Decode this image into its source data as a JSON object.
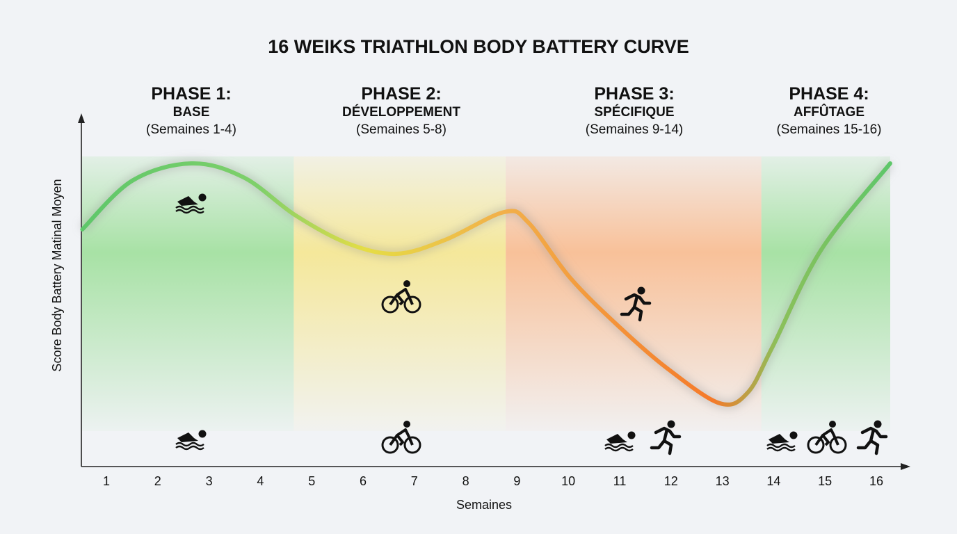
{
  "chart_data": {
    "type": "line",
    "title": "16 WEIKS TRIATHLON BODY BATTERY CURVE",
    "xlabel": "Semaines",
    "ylabel": "Score Body Battery Matinal Moyen",
    "x_ticks": [
      "1",
      "2",
      "3",
      "4",
      "5",
      "6",
      "7",
      "8",
      "9",
      "10",
      "11",
      "12",
      "13",
      "14",
      "15",
      "16"
    ],
    "xlim": [
      0.5,
      16.3
    ],
    "ylim": [
      0,
      100
    ],
    "grid": false,
    "series": [
      {
        "x": [
          0.53,
          1.5,
          2.65,
          3.67,
          4.69,
          5.7,
          6.65,
          7.6,
          8.75,
          9.22,
          10.04,
          10.99,
          11.93,
          12.95,
          13.49,
          13.97,
          14.92,
          16.27
        ],
        "y": [
          68,
          82,
          87,
          83,
          72,
          64,
          61,
          65,
          73,
          70,
          54,
          40,
          28,
          18,
          21,
          34,
          62,
          87
        ]
      }
    ],
    "phases": [
      {
        "title": "PHASE 1:",
        "name": "BASE",
        "weeks": "(Semaines 1-4)",
        "color": "#8fdc8a",
        "range": [
          0.5,
          4.65
        ],
        "icons": [
          "swim-icon"
        ]
      },
      {
        "title": "PHASE 2:",
        "name": "DÉVELOPPEMENT",
        "weeks": "(Semaines 5-8)",
        "color": "#f6e47c",
        "range": [
          4.65,
          8.78
        ],
        "icons": [
          "bike-icon"
        ]
      },
      {
        "title": "PHASE 3:",
        "name": "SPÉCIFIQUE",
        "weeks": "(Semaines 9-14)",
        "color": "#fbb07a",
        "range": [
          8.78,
          13.76
        ],
        "icons": [
          "swim-icon",
          "run-icon"
        ]
      },
      {
        "title": "PHASE 4:",
        "name": "AFFÛTAGE",
        "weeks": "(Semaines 15-16)",
        "color": "#8fdc8a",
        "range": [
          13.76,
          16.3
        ],
        "icons": [
          "swim-icon",
          "bike-icon",
          "run-icon"
        ]
      }
    ],
    "curve_colors": [
      "#5ec76a",
      "#e8dc45",
      "#f5a04a",
      "#f57a2a",
      "#5ec76a"
    ]
  }
}
